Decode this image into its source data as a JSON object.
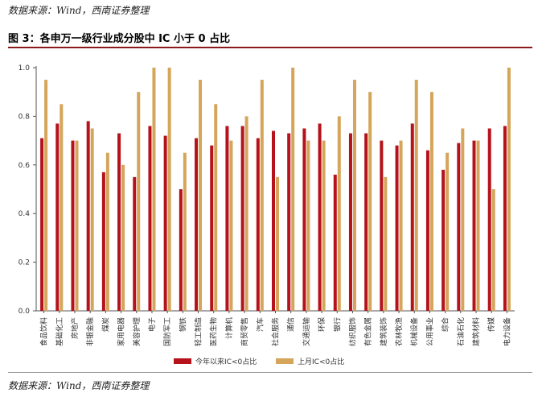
{
  "source_top": "数据来源：Wind，西南证券整理",
  "source_bottom": "数据来源：Wind，西南证券整理",
  "figure_title": "图 3：各申万一级行业成分股中 IC 小于 0 占比",
  "colors": {
    "series1": "#b5121b",
    "series2": "#d4a55a",
    "rule": "#8b1a1a"
  },
  "chart_data": {
    "type": "bar",
    "title": "各申万一级行业成分股中 IC 小于 0 占比",
    "xlabel": "",
    "ylabel": "",
    "ylim": [
      0,
      1.0
    ],
    "yticks": [
      "0.0",
      "0.2",
      "0.4",
      "0.6",
      "0.8",
      "1.0"
    ],
    "ytick_values": [
      0,
      0.2,
      0.4,
      0.6,
      0.8,
      1.0
    ],
    "legend_position": "bottom",
    "categories": [
      "食品饮料",
      "基础化工",
      "房地产",
      "非银金融",
      "煤炭",
      "家用电器",
      "美容护理",
      "电子",
      "国防军工",
      "钢铁",
      "轻工制造",
      "医药生物",
      "计算机",
      "商贸零售",
      "汽车",
      "社会服务",
      "通信",
      "交通运输",
      "环保",
      "银行",
      "纺织服饰",
      "有色金属",
      "建筑装饰",
      "农林牧渔",
      "机械设备",
      "公用事业",
      "综合",
      "石油石化",
      "建筑材料",
      "传媒",
      "电力设备"
    ],
    "series": [
      {
        "name": "今年以来IC<0占比",
        "values": [
          0.71,
          0.77,
          0.7,
          0.78,
          0.57,
          0.73,
          0.55,
          0.76,
          0.72,
          0.5,
          0.71,
          0.68,
          0.76,
          0.76,
          0.71,
          0.74,
          0.73,
          0.75,
          0.77,
          0.56,
          0.73,
          0.73,
          0.7,
          0.68,
          0.77,
          0.66,
          0.58,
          0.69,
          0.7,
          0.75,
          0.76
        ]
      },
      {
        "name": "上月IC<0占比",
        "values": [
          0.95,
          0.85,
          0.7,
          0.75,
          0.65,
          0.6,
          0.9,
          1.0,
          1.0,
          0.65,
          0.95,
          0.85,
          0.7,
          0.8,
          0.95,
          0.55,
          1.0,
          0.7,
          0.7,
          0.8,
          0.95,
          0.9,
          0.55,
          0.7,
          0.95,
          0.9,
          0.65,
          0.75,
          0.7,
          0.5,
          1.0
        ]
      }
    ]
  }
}
